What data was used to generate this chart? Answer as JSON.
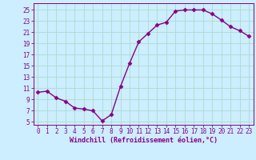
{
  "x": [
    0,
    1,
    2,
    3,
    4,
    5,
    6,
    7,
    8,
    9,
    10,
    11,
    12,
    13,
    14,
    15,
    16,
    17,
    18,
    19,
    20,
    21,
    22,
    23
  ],
  "y": [
    10.3,
    10.5,
    9.3,
    8.7,
    7.5,
    7.3,
    7.0,
    5.2,
    6.3,
    11.3,
    15.5,
    19.3,
    20.8,
    22.3,
    22.8,
    24.8,
    25.0,
    25.0,
    25.0,
    24.3,
    23.2,
    22.0,
    21.3,
    20.3
  ],
  "line_color": "#880088",
  "marker": "D",
  "marker_size": 2.5,
  "background_color": "#cceeff",
  "grid_color": "#aaddcc",
  "xlabel": "Windchill (Refroidissement éolien,°C)",
  "xlabel_fontsize": 6,
  "ylabel_ticks": [
    5,
    7,
    9,
    11,
    13,
    15,
    17,
    19,
    21,
    23,
    25
  ],
  "xtick_labels": [
    "0",
    "1",
    "2",
    "3",
    "4",
    "5",
    "6",
    "7",
    "8",
    "9",
    "10",
    "11",
    "12",
    "13",
    "14",
    "15",
    "16",
    "17",
    "18",
    "19",
    "20",
    "21",
    "22",
    "23"
  ],
  "ylim": [
    4.5,
    26.2
  ],
  "xlim": [
    -0.5,
    23.5
  ],
  "tick_fontsize": 5.5,
  "line_width": 1.0
}
